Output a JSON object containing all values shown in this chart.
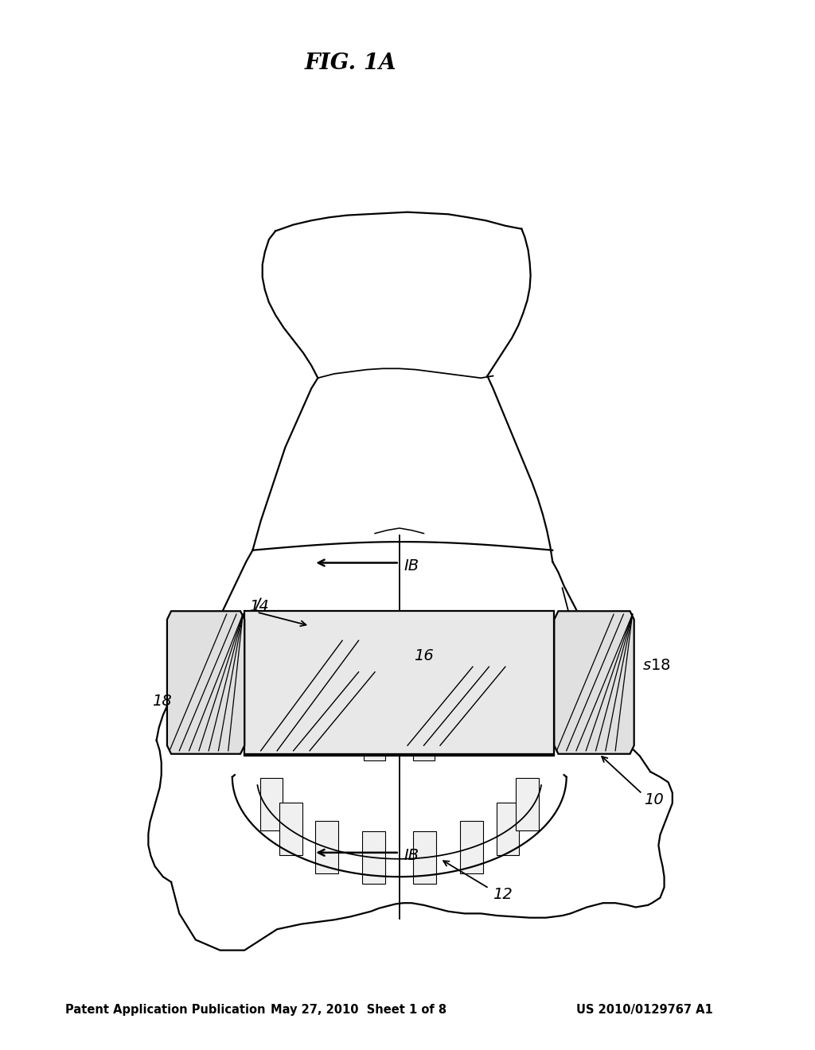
{
  "background_color": "#ffffff",
  "header_left": "Patent Application Publication",
  "header_center": "May 27, 2010  Sheet 1 of 8",
  "header_right": "US 2010/0129767 A1",
  "header_fontsize": 10.5,
  "figure_caption": "FIG. 1A",
  "caption_fontsize": 20,
  "line_color": "#000000",
  "text_color": "#000000"
}
